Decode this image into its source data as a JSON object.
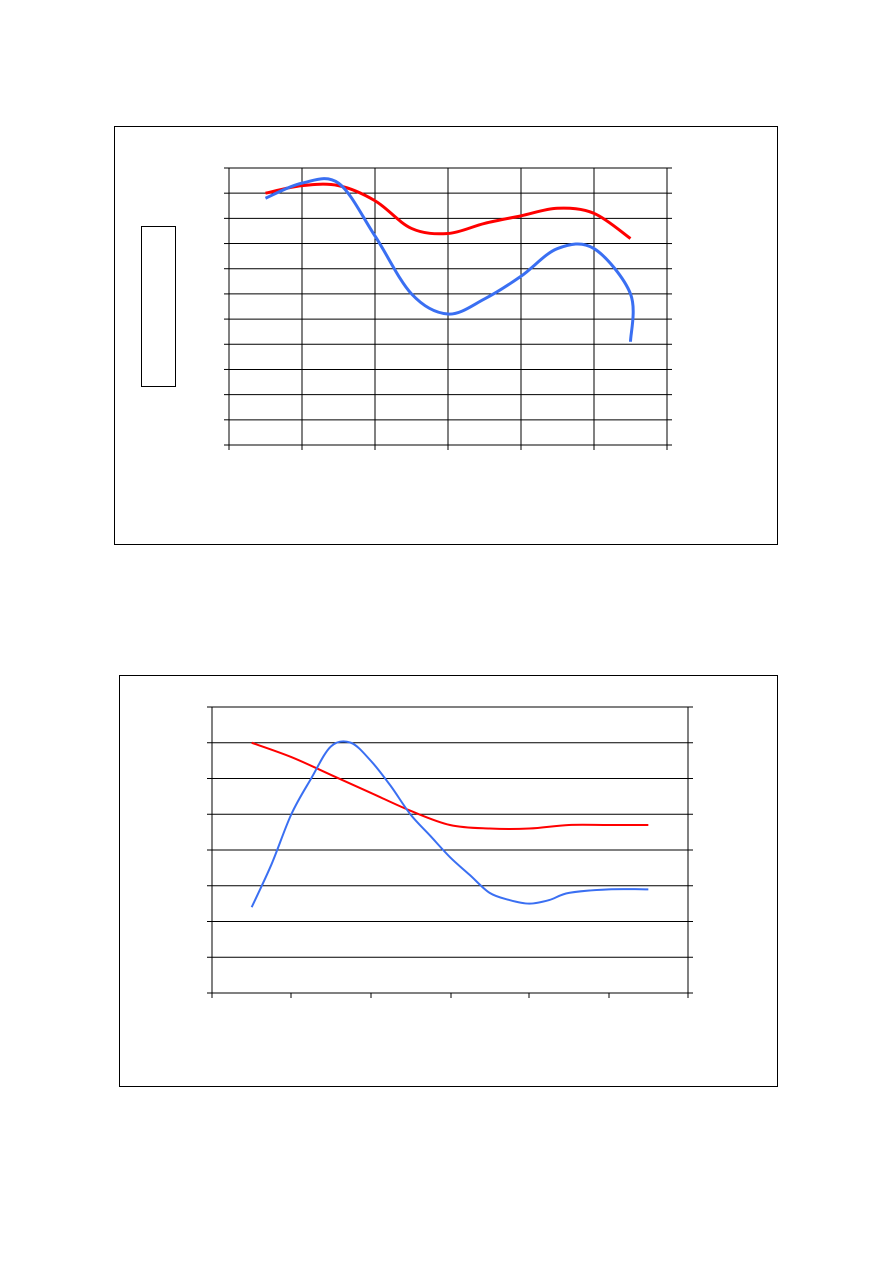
{
  "chart_data": [
    {
      "type": "line",
      "title": "",
      "xlabel": "",
      "ylabel": "",
      "x": [
        1,
        1.5,
        2,
        2.5,
        3,
        3.5,
        4,
        4.5,
        5,
        5.5,
        6,
        6.5
      ],
      "xlim": [
        0.5,
        6.5
      ],
      "ylim": [
        0,
        11
      ],
      "grid": true,
      "series": [
        {
          "color": "#ff0000",
          "axis": "left",
          "values": [
            10.0,
            10.3,
            10.3,
            9.7,
            8.6,
            8.4,
            8.8,
            9.1,
            9.4,
            9.2,
            8.2,
            null
          ],
          "x": [
            1,
            1.5,
            2,
            2.5,
            3,
            3.5,
            4,
            4.5,
            5,
            5.5,
            6,
            6
          ]
        },
        {
          "color": "#3a6ff2",
          "axis": "left",
          "values": [
            9.8,
            10.4,
            10.4,
            8.3,
            6.0,
            5.2,
            5.8,
            6.7,
            7.8,
            7.8,
            6.0,
            4.1
          ],
          "x": [
            1,
            1.5,
            2,
            2.5,
            3,
            3.5,
            4,
            4.5,
            5,
            5.5,
            6,
            6
          ]
        }
      ],
      "legend_position": "left",
      "right_axis_ticks": 11
    },
    {
      "type": "line",
      "title": "",
      "xlabel": "",
      "ylabel": "",
      "xlim": [
        0.5,
        6.5
      ],
      "ylim": [
        0,
        8
      ],
      "grid": true,
      "series": [
        {
          "color": "#ff0000",
          "x": [
            1,
            1.5,
            2,
            2.5,
            3,
            3.5,
            4,
            4.5,
            5,
            5.5,
            6
          ],
          "values": [
            7.0,
            6.6,
            6.1,
            5.6,
            5.1,
            4.7,
            4.6,
            4.6,
            4.7,
            4.7,
            4.7
          ]
        },
        {
          "color": "#3a6ff2",
          "x": [
            1,
            1.25,
            1.5,
            1.75,
            2,
            2.25,
            2.5,
            2.75,
            3,
            3.25,
            3.5,
            3.75,
            4,
            4.25,
            4.5,
            4.75,
            5,
            5.5,
            6
          ],
          "values": [
            2.4,
            3.6,
            5.0,
            6.0,
            6.9,
            7.0,
            6.5,
            5.8,
            5.0,
            4.4,
            3.8,
            3.3,
            2.8,
            2.6,
            2.5,
            2.6,
            2.8,
            2.9,
            2.9
          ]
        }
      ],
      "right_axis_ticks": 8
    }
  ]
}
